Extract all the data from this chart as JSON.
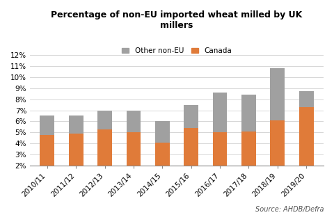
{
  "categories": [
    "2010/11",
    "2011/12",
    "2012/13",
    "2013/14",
    "2014/15",
    "2015/16",
    "2016/17",
    "2017/18",
    "2018/19",
    "2019/20"
  ],
  "canada": [
    4.8,
    4.9,
    5.3,
    5.0,
    4.1,
    5.4,
    5.0,
    5.1,
    6.1,
    7.3
  ],
  "other_non_eu": [
    1.7,
    1.6,
    1.7,
    2.0,
    1.9,
    2.1,
    3.6,
    3.3,
    4.7,
    1.4
  ],
  "canada_color": "#e07b39",
  "other_color": "#a0a0a0",
  "title": "Percentage of non-EU imported wheat milled by UK\nmillers",
  "title_fontsize": 9,
  "legend_labels": [
    "Other non-EU",
    "Canada"
  ],
  "legend_colors": [
    "#a0a0a0",
    "#e07b39"
  ],
  "ylabel_ticks": [
    "2%",
    "3%",
    "4%",
    "5%",
    "6%",
    "7%",
    "8%",
    "9%",
    "10%",
    "11%",
    "12%"
  ],
  "ytick_vals": [
    2,
    3,
    4,
    5,
    6,
    7,
    8,
    9,
    10,
    11,
    12
  ],
  "ylim": [
    2,
    12
  ],
  "source_text": "Source: AHDB/Defra",
  "background_color": "#ffffff",
  "bar_width": 0.5
}
